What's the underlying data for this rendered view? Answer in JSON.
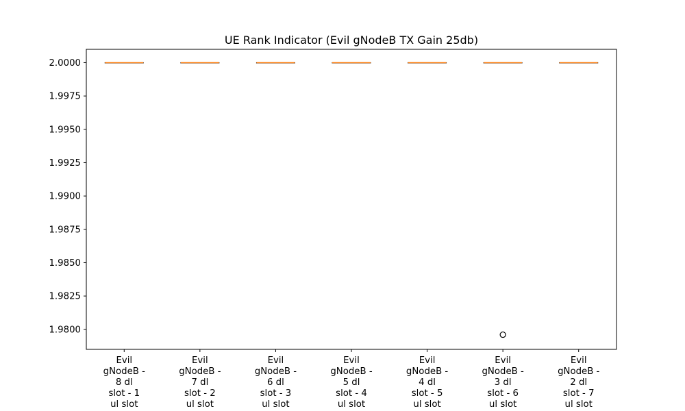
{
  "chart_data": {
    "type": "box",
    "title": "UE Rank Indicator (Evil gNodeB TX Gain 25db)",
    "xlabel": "",
    "ylabel": "",
    "ylim": [
      1.9785,
      2.001
    ],
    "yticks": [
      "2.0000",
      "1.9975",
      "1.9950",
      "1.9925",
      "1.9900",
      "1.9875",
      "1.9850",
      "1.9825",
      "1.9800"
    ],
    "grid": false,
    "categories": [
      [
        "Evil",
        "gNodeB -",
        "8 dl",
        "slot - 1",
        "ul slot"
      ],
      [
        "Evil",
        "gNodeB -",
        "7 dl",
        "slot - 2",
        "ul slot"
      ],
      [
        "Evil",
        "gNodeB -",
        "6 dl",
        "slot - 3",
        "ul slot"
      ],
      [
        "Evil",
        "gNodeB -",
        "5 dl",
        "slot - 4",
        "ul slot"
      ],
      [
        "Evil",
        "gNodeB -",
        "4 dl",
        "slot - 5",
        "ul slot"
      ],
      [
        "Evil",
        "gNodeB -",
        "3 dl",
        "slot - 6",
        "ul slot"
      ],
      [
        "Evil",
        "gNodeB -",
        "2 dl",
        "slot - 7",
        "ul slot"
      ]
    ],
    "boxes": [
      {
        "min": 2.0,
        "q1": 2.0,
        "median": 2.0,
        "q3": 2.0,
        "max": 2.0,
        "outliers": []
      },
      {
        "min": 2.0,
        "q1": 2.0,
        "median": 2.0,
        "q3": 2.0,
        "max": 2.0,
        "outliers": []
      },
      {
        "min": 2.0,
        "q1": 2.0,
        "median": 2.0,
        "q3": 2.0,
        "max": 2.0,
        "outliers": []
      },
      {
        "min": 2.0,
        "q1": 2.0,
        "median": 2.0,
        "q3": 2.0,
        "max": 2.0,
        "outliers": []
      },
      {
        "min": 2.0,
        "q1": 2.0,
        "median": 2.0,
        "q3": 2.0,
        "max": 2.0,
        "outliers": []
      },
      {
        "min": 2.0,
        "q1": 2.0,
        "median": 2.0,
        "q3": 2.0,
        "max": 2.0,
        "outliers": [
          1.9796
        ]
      },
      {
        "min": 2.0,
        "q1": 2.0,
        "median": 2.0,
        "q3": 2.0,
        "max": 2.0,
        "outliers": []
      }
    ],
    "colors": {
      "box": "#000000",
      "median": "#ff7f0e",
      "outlier": "#000000",
      "axes": "#000000"
    }
  }
}
